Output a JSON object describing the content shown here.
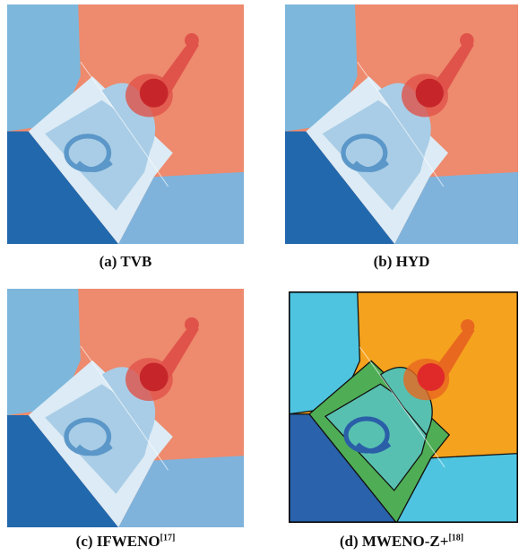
{
  "panels": [
    {
      "label": "(a) TVB"
    },
    {
      "label": "(b) HYD"
    },
    {
      "label": "(c) IFWENO",
      "ref": "[17]"
    },
    {
      "label": "(d) MWENO-Z+",
      "ref": "[18]"
    }
  ]
}
